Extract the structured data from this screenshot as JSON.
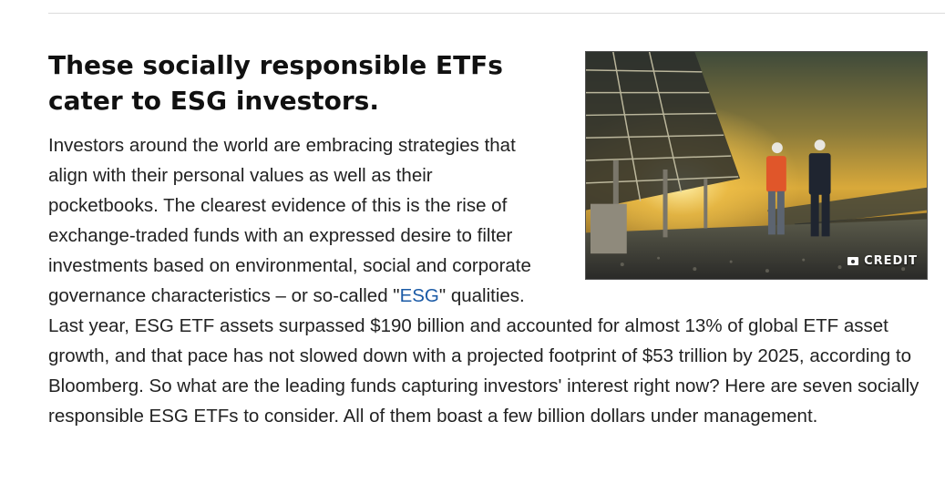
{
  "article": {
    "headline": "These socially responsible ETFs cater to ESG investors.",
    "body_before_link": "Investors around the world are embracing strategies that align with their personal values as well as their pocketbooks. The clearest evidence of this is the rise of exchange-traded funds with an expressed desire to filter investments based on environmental, social and corporate governance characteristics – or so-called \"",
    "link_text": "ESG",
    "body_after_link": "\" qualities. Last year, ESG ETF assets surpassed $190 billion and accounted for almost 13% of global ETF asset growth, and that pace has not slowed down with a projected footprint of $53 trillion by 2025, according to Bloomberg. So what are the leading funds capturing investors' interest right now? Here are seven socially responsible ESG ETFs to consider. All of them boast a few billion dollars under management."
  },
  "image": {
    "credit_label": "CREDIT",
    "credit_icon": "camera-icon"
  },
  "colors": {
    "link": "#1a5aa6",
    "text": "#222222",
    "rule": "#dcdcdc"
  }
}
